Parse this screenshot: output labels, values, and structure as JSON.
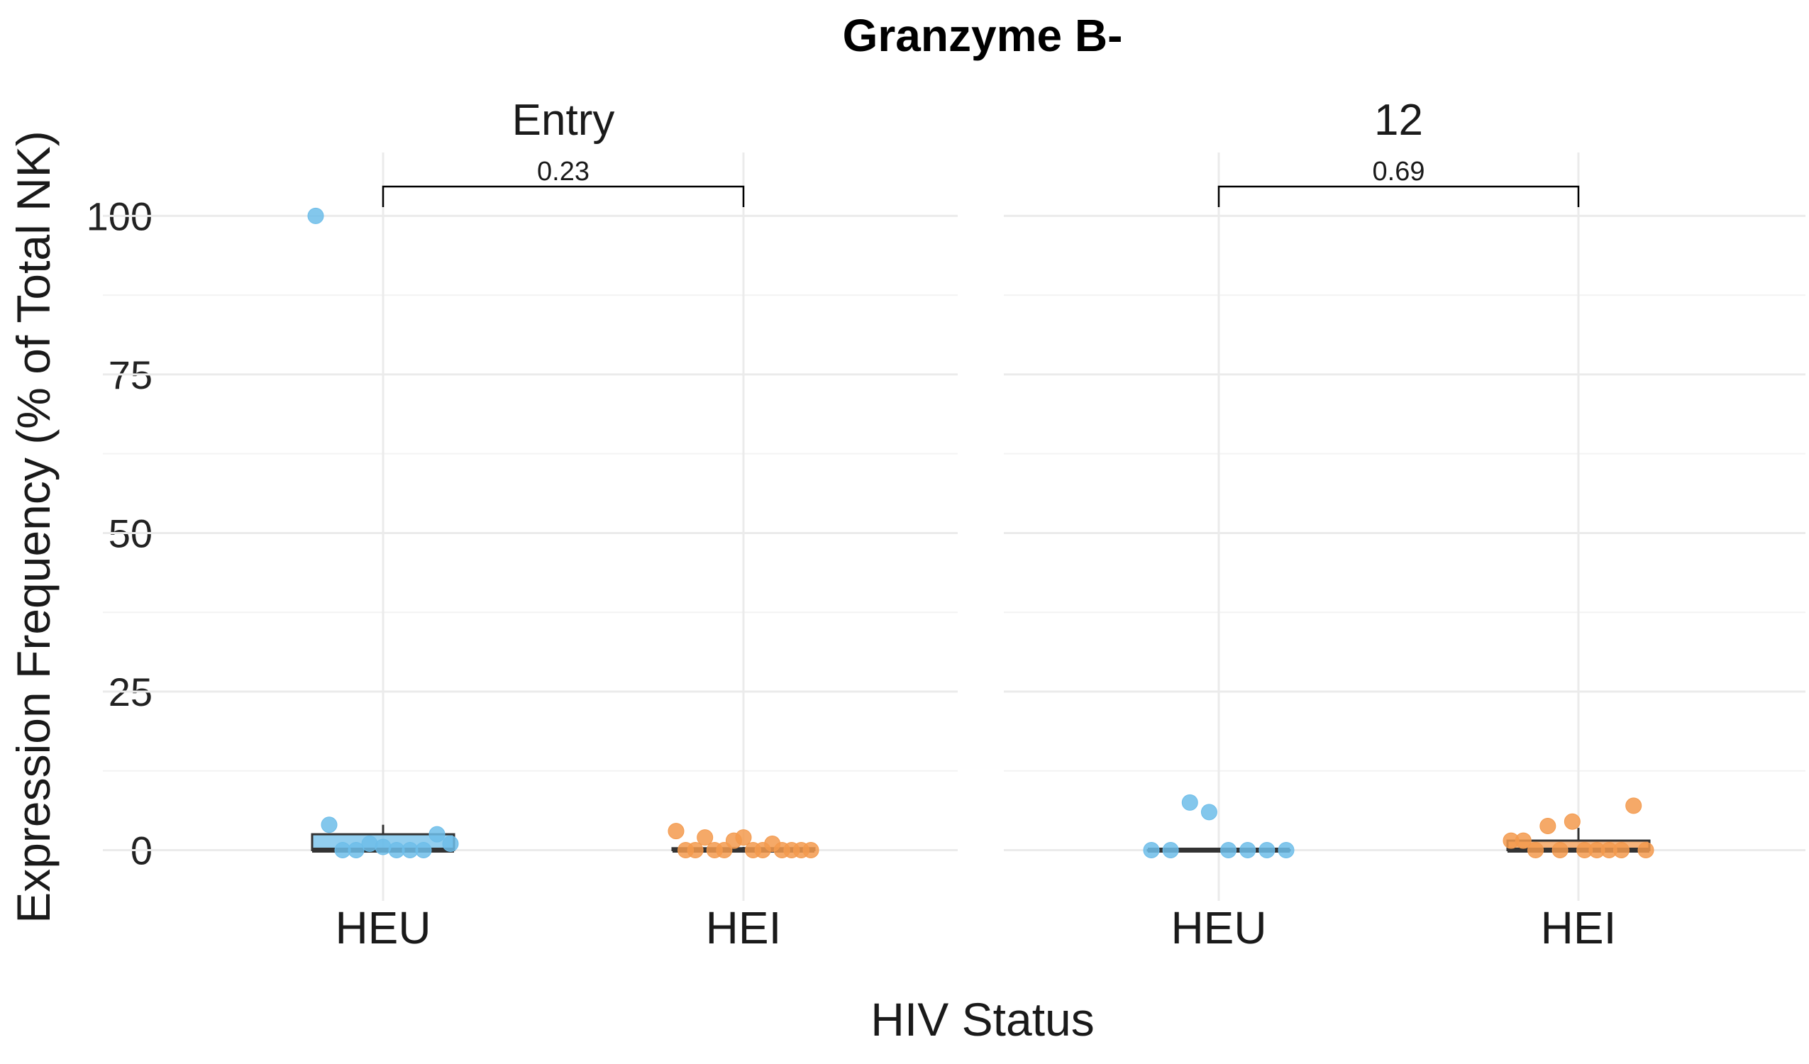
{
  "chart_data": {
    "type": "box",
    "title": "Granzyme B-",
    "xlabel": "HIV Status",
    "ylabel": "Expression Frequency (% of Total NK)",
    "ylim": [
      -8,
      110
    ],
    "yticks": [
      0,
      25,
      50,
      75,
      100
    ],
    "categories": [
      "HEU",
      "HEI"
    ],
    "colors": {
      "HEU": "#6dbde9",
      "HEI": "#f39a4e"
    },
    "legend": "none",
    "grid": true,
    "facets": [
      {
        "label": "Entry",
        "p_value": "0.23",
        "groups": [
          {
            "name": "HEU",
            "q1": 0,
            "median": 0,
            "q3": 2.5,
            "whisker_low": 0,
            "whisker_high": 4,
            "points": [
              100,
              4,
              0,
              0,
              1,
              0.5,
              0,
              0,
              0,
              2.5,
              1
            ]
          },
          {
            "name": "HEI",
            "q1": 0,
            "median": 0,
            "q3": 0.3,
            "whisker_low": 0,
            "whisker_high": 0.5,
            "points": [
              3,
              0,
              0,
              2,
              0,
              0,
              1.5,
              2,
              0,
              0,
              1,
              0,
              0,
              0,
              0
            ]
          }
        ]
      },
      {
        "label": "12",
        "p_value": "0.69",
        "groups": [
          {
            "name": "HEU",
            "q1": 0,
            "median": 0,
            "q3": 0,
            "whisker_low": 0,
            "whisker_high": 0,
            "points": [
              0,
              0,
              7.5,
              6,
              0,
              0,
              0,
              0
            ]
          },
          {
            "name": "HEI",
            "q1": 0,
            "median": 0,
            "q3": 1.5,
            "whisker_low": 0,
            "whisker_high": 3.5,
            "points": [
              1.5,
              1.5,
              0,
              3.8,
              0,
              4.5,
              0,
              0,
              0,
              0,
              7,
              0
            ]
          }
        ]
      }
    ]
  }
}
